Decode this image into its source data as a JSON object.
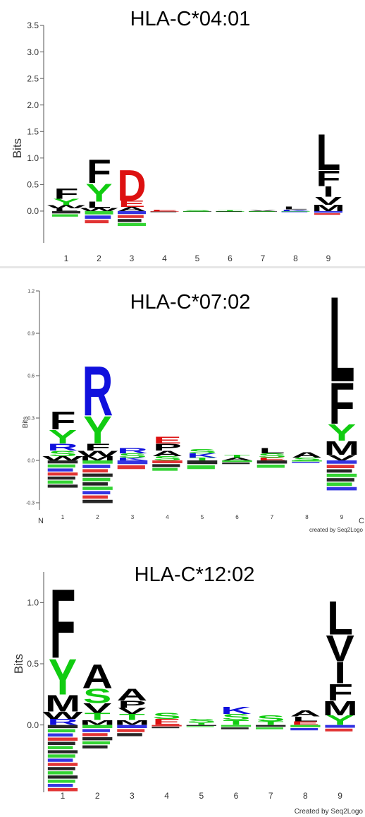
{
  "colors": {
    "hydrophobic": "#000000",
    "polar": "#11cc11",
    "basic": "#1111dd",
    "acidic": "#dd1111",
    "other": "#9a9a9a"
  },
  "chart_data": [
    {
      "type": "sequence-logo",
      "title": "HLA-C*04:01",
      "ylabel": "Bits",
      "ylim": [
        -0.6,
        3.5
      ],
      "y_ticks": [
        0.0,
        0.5,
        1.0,
        1.5,
        2.0,
        2.5,
        3.0,
        3.5
      ],
      "y_tick_labels": [
        "0.0",
        "0.5",
        "1.0",
        "1.5",
        "2.0",
        "2.5",
        "3.0",
        "3.5"
      ],
      "x_ticks": [
        "1",
        "2",
        "3",
        "4",
        "5",
        "6",
        "7",
        "8",
        "9"
      ],
      "credit": "",
      "positions": [
        {
          "pos": 1,
          "letters": [
            {
              "aa": "F",
              "bits": 0.2
            },
            {
              "aa": "Y",
              "bits": 0.12
            },
            {
              "aa": "W",
              "bits": 0.06
            },
            {
              "aa": "L",
              "bits": 0.05
            }
          ],
          "depletion": 0.12
        },
        {
          "pos": 2,
          "letters": [
            {
              "aa": "F",
              "bits": 0.45
            },
            {
              "aa": "Y",
              "bits": 0.35
            },
            {
              "aa": "L",
              "bits": 0.12
            },
            {
              "aa": "W",
              "bits": 0.06
            }
          ],
          "depletion": 0.25
        },
        {
          "pos": 3,
          "letters": [
            {
              "aa": "D",
              "bits": 0.6
            },
            {
              "aa": "E",
              "bits": 0.12
            },
            {
              "aa": "A",
              "bits": 0.08
            }
          ],
          "depletion": 0.3
        },
        {
          "pos": 4,
          "letters": [
            {
              "aa": "E",
              "bits": 0.03
            }
          ],
          "depletion": 0.02
        },
        {
          "pos": 5,
          "letters": [
            {
              "aa": "S",
              "bits": 0.02
            }
          ],
          "depletion": 0.01
        },
        {
          "pos": 6,
          "letters": [
            {
              "aa": "T",
              "bits": 0.02
            }
          ],
          "depletion": 0.01
        },
        {
          "pos": 7,
          "letters": [
            {
              "aa": "V",
              "bits": 0.02
            }
          ],
          "depletion": 0.01
        },
        {
          "pos": 8,
          "letters": [
            {
              "aa": "L",
              "bits": 0.05
            },
            {
              "aa": "K",
              "bits": 0.03
            }
          ],
          "depletion": 0.02
        },
        {
          "pos": 9,
          "letters": [
            {
              "aa": "L",
              "bits": 0.7
            },
            {
              "aa": "F",
              "bits": 0.3
            },
            {
              "aa": "I",
              "bits": 0.2
            },
            {
              "aa": "V",
              "bits": 0.15
            },
            {
              "aa": "M",
              "bits": 0.12
            }
          ],
          "depletion": 0.08
        }
      ]
    },
    {
      "type": "sequence-logo",
      "title": "HLA-C*07:02",
      "ylabel": "Bits",
      "ylim": [
        -0.35,
        1.2
      ],
      "y_ticks": [
        -0.3,
        0.0,
        0.3,
        0.6,
        0.9,
        1.2
      ],
      "y_tick_labels": [
        "-0.3",
        "0.0",
        "0.3",
        "0.6",
        "0.9",
        "1.2"
      ],
      "x_ticks": [
        "1",
        "2",
        "3",
        "4",
        "5",
        "6",
        "7",
        "8",
        "9"
      ],
      "x_end_labels": [
        "N",
        "C"
      ],
      "credit": "created by Seq2Logo",
      "positions": [
        {
          "pos": 1,
          "letters": [
            {
              "aa": "F",
              "bits": 0.13
            },
            {
              "aa": "Y",
              "bits": 0.1
            },
            {
              "aa": "R",
              "bits": 0.05
            },
            {
              "aa": "S",
              "bits": 0.04
            },
            {
              "aa": "W",
              "bits": 0.03
            }
          ],
          "depletion": 0.2
        },
        {
          "pos": 2,
          "letters": [
            {
              "aa": "R",
              "bits": 0.36
            },
            {
              "aa": "Y",
              "bits": 0.2
            },
            {
              "aa": "F",
              "bits": 0.05
            },
            {
              "aa": "W",
              "bits": 0.04
            },
            {
              "aa": "M",
              "bits": 0.03
            }
          ],
          "depletion": 0.31
        },
        {
          "pos": 3,
          "letters": [
            {
              "aa": "R",
              "bits": 0.04
            },
            {
              "aa": "S",
              "bits": 0.03
            },
            {
              "aa": "K",
              "bits": 0.02
            }
          ],
          "depletion": 0.07
        },
        {
          "pos": 4,
          "letters": [
            {
              "aa": "P",
              "bits": 0.05
            },
            {
              "aa": "E",
              "bits": 0.05
            },
            {
              "aa": "A",
              "bits": 0.04
            },
            {
              "aa": "S",
              "bits": 0.03
            }
          ],
          "depletion": 0.08
        },
        {
          "pos": 5,
          "letters": [
            {
              "aa": "K",
              "bits": 0.03
            },
            {
              "aa": "S",
              "bits": 0.03
            },
            {
              "aa": "T",
              "bits": 0.02
            }
          ],
          "depletion": 0.07
        },
        {
          "pos": 6,
          "letters": [
            {
              "aa": "A",
              "bits": 0.02
            },
            {
              "aa": "T",
              "bits": 0.02
            }
          ],
          "depletion": 0.03
        },
        {
          "pos": 7,
          "letters": [
            {
              "aa": "L",
              "bits": 0.04
            },
            {
              "aa": "S",
              "bits": 0.03
            },
            {
              "aa": "E",
              "bits": 0.02
            }
          ],
          "depletion": 0.06
        },
        {
          "pos": 8,
          "letters": [
            {
              "aa": "A",
              "bits": 0.04
            },
            {
              "aa": "S",
              "bits": 0.02
            }
          ],
          "depletion": 0.02
        },
        {
          "pos": 9,
          "letters": [
            {
              "aa": "L",
              "bits": 0.62
            },
            {
              "aa": "F",
              "bits": 0.3
            },
            {
              "aa": "Y",
              "bits": 0.12
            },
            {
              "aa": "M",
              "bits": 0.1
            },
            {
              "aa": "V",
              "bits": 0.04
            }
          ],
          "depletion": 0.22
        }
      ]
    },
    {
      "type": "sequence-logo",
      "title": "HLA-C*12:02",
      "ylabel": "Bits",
      "ylim": [
        -0.55,
        1.25
      ],
      "y_ticks": [
        0.0,
        0.5,
        1.0
      ],
      "y_tick_labels": [
        "0.0",
        "0.5",
        "1.0"
      ],
      "x_ticks": [
        "1",
        "2",
        "3",
        "4",
        "5",
        "6",
        "7",
        "8",
        "9"
      ],
      "credit": "Created by Seq2Logo",
      "positions": [
        {
          "pos": 1,
          "letters": [
            {
              "aa": "F",
              "bits": 0.58
            },
            {
              "aa": "Y",
              "bits": 0.3
            },
            {
              "aa": "M",
              "bits": 0.14
            },
            {
              "aa": "W",
              "bits": 0.06
            },
            {
              "aa": "R",
              "bits": 0.05
            }
          ],
          "depletion": 0.55
        },
        {
          "pos": 2,
          "letters": [
            {
              "aa": "A",
              "bits": 0.2
            },
            {
              "aa": "S",
              "bits": 0.12
            },
            {
              "aa": "V",
              "bits": 0.08
            },
            {
              "aa": "T",
              "bits": 0.06
            },
            {
              "aa": "M",
              "bits": 0.04
            }
          ],
          "depletion": 0.2
        },
        {
          "pos": 3,
          "letters": [
            {
              "aa": "A",
              "bits": 0.1
            },
            {
              "aa": "P",
              "bits": 0.06
            },
            {
              "aa": "T",
              "bits": 0.05
            },
            {
              "aa": "V",
              "bits": 0.05
            },
            {
              "aa": "M",
              "bits": 0.04
            }
          ],
          "depletion": 0.1
        },
        {
          "pos": 4,
          "letters": [
            {
              "aa": "E",
              "bits": 0.05
            },
            {
              "aa": "S",
              "bits": 0.05
            }
          ],
          "depletion": 0.03
        },
        {
          "pos": 5,
          "letters": [
            {
              "aa": "S",
              "bits": 0.03
            },
            {
              "aa": "T",
              "bits": 0.02
            }
          ],
          "depletion": 0.02
        },
        {
          "pos": 6,
          "letters": [
            {
              "aa": "K",
              "bits": 0.06
            },
            {
              "aa": "S",
              "bits": 0.05
            },
            {
              "aa": "T",
              "bits": 0.04
            }
          ],
          "depletion": 0.04
        },
        {
          "pos": 7,
          "letters": [
            {
              "aa": "S",
              "bits": 0.05
            },
            {
              "aa": "T",
              "bits": 0.03
            }
          ],
          "depletion": 0.04
        },
        {
          "pos": 8,
          "letters": [
            {
              "aa": "A",
              "bits": 0.05
            },
            {
              "aa": "L",
              "bits": 0.04
            },
            {
              "aa": "E",
              "bits": 0.03
            }
          ],
          "depletion": 0.05
        },
        {
          "pos": 9,
          "letters": [
            {
              "aa": "L",
              "bits": 0.28
            },
            {
              "aa": "V",
              "bits": 0.22
            },
            {
              "aa": "I",
              "bits": 0.18
            },
            {
              "aa": "F",
              "bits": 0.14
            },
            {
              "aa": "M",
              "bits": 0.12
            },
            {
              "aa": "Y",
              "bits": 0.08
            }
          ],
          "depletion": 0.06
        }
      ]
    }
  ]
}
